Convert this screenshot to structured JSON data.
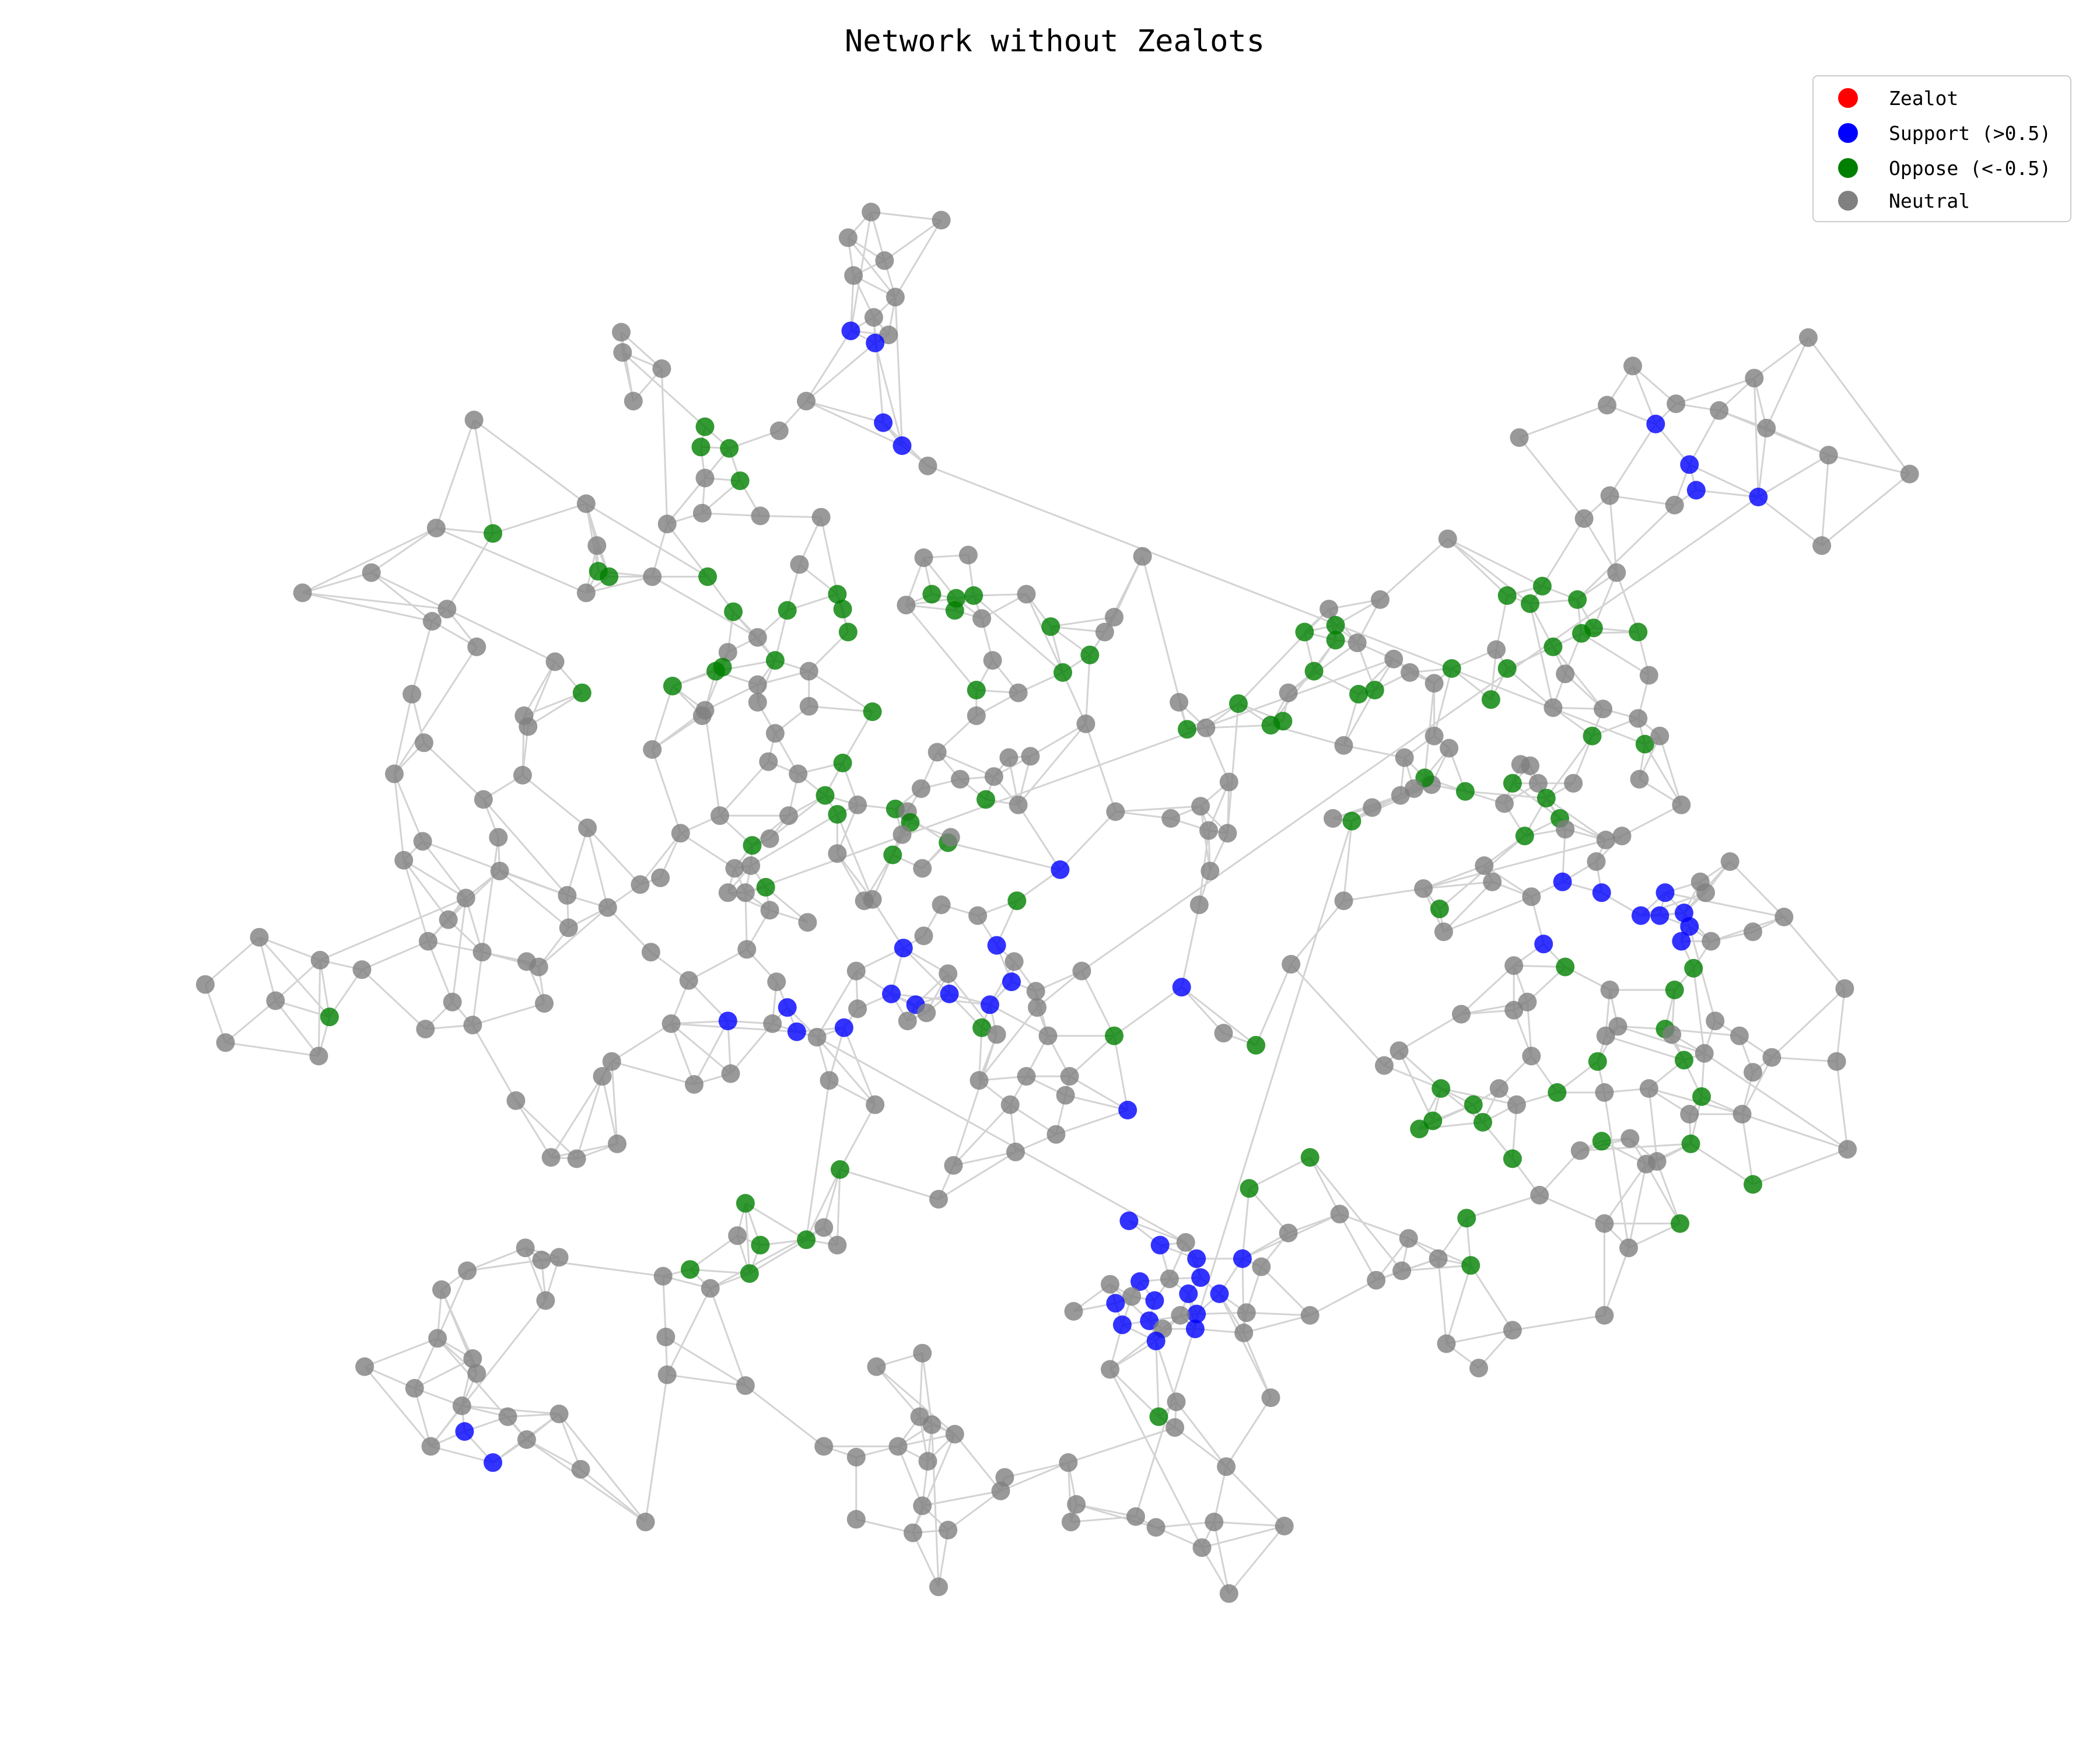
{
  "title": "Network without Zealots",
  "legend": [
    {
      "key": "zealot",
      "label": "Zealot",
      "color": "#ff0000"
    },
    {
      "key": "support",
      "label": "Support (>0.5)",
      "color": "#0000ff"
    },
    {
      "key": "oppose",
      "label": "Oppose (<-0.5)",
      "color": "#008000"
    },
    {
      "key": "neutral",
      "label": "Neutral",
      "color": "#808080"
    }
  ],
  "colors": {
    "edge": "#d3d3d3"
  },
  "chart_data": {
    "type": "network",
    "title": "Network without Zealots",
    "legend_placement": "top-right",
    "node_categories": [
      "Zealot",
      "Support (>0.5)",
      "Oppose (<-0.5)",
      "Neutral"
    ],
    "category_counts_visible": {
      "Zealot": 0
    }
  }
}
